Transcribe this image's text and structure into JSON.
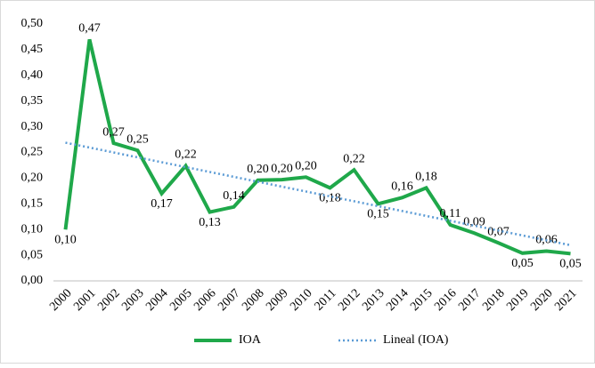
{
  "chart_data": {
    "type": "line",
    "categories": [
      "2000",
      "2001",
      "2002",
      "2003",
      "2004",
      "2005",
      "2006",
      "2007",
      "2008",
      "2009",
      "2010",
      "2011",
      "2012",
      "2013",
      "2014",
      "2015",
      "2016",
      "2017",
      "2018",
      "2019",
      "2020",
      "2021"
    ],
    "series": [
      {
        "name": "IOA",
        "color": "#1fa84a",
        "style": "solid",
        "values": [
          0.1,
          0.47,
          0.268,
          0.254,
          0.17,
          0.224,
          0.134,
          0.144,
          0.196,
          0.197,
          0.202,
          0.181,
          0.216,
          0.15,
          0.162,
          0.181,
          0.109,
          0.093,
          0.074,
          0.054,
          0.058,
          0.053
        ],
        "value_labels": [
          "0,10",
          "0,47",
          "0,27",
          "0,25",
          "0,17",
          "0,22",
          "0,13",
          "0,14",
          "0,20",
          "0,20",
          "0,20",
          "0,18",
          "0,22",
          "0,15",
          "0,16",
          "0,18",
          "0,11",
          "0,09",
          "0,07",
          "0,05",
          "0,06",
          "0,05"
        ]
      },
      {
        "name": "Lineal (IOA)",
        "color": "#5b9bd5",
        "style": "dotted",
        "values": [
          0.269,
          0.2595,
          0.25,
          0.2405,
          0.231,
          0.2215,
          0.212,
          0.2025,
          0.193,
          0.1835,
          0.174,
          0.1645,
          0.155,
          0.1455,
          0.136,
          0.1265,
          0.117,
          0.1075,
          0.098,
          0.0885,
          0.079,
          0.0695
        ]
      }
    ],
    "ylim": [
      0,
      0.5
    ],
    "yticks": [
      {
        "value": 0,
        "label": "0,00"
      },
      {
        "value": 0.05,
        "label": "0,05"
      },
      {
        "value": 0.1,
        "label": "0,10"
      },
      {
        "value": 0.15,
        "label": "0,15"
      },
      {
        "value": 0.2,
        "label": "0,20"
      },
      {
        "value": 0.25,
        "label": "0,25"
      },
      {
        "value": 0.3,
        "label": "0,30"
      },
      {
        "value": 0.35,
        "label": "0,35"
      },
      {
        "value": 0.4,
        "label": "0,40"
      },
      {
        "value": 0.45,
        "label": "0,45"
      },
      {
        "value": 0.5,
        "label": "0,50"
      }
    ],
    "grid": false,
    "legend": "bottom"
  }
}
